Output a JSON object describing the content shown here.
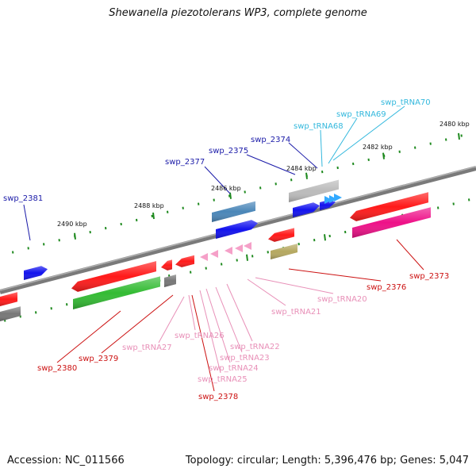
{
  "title": "Shewanella piezotolerans WP3, complete genome",
  "footer": {
    "accession": "Accession: NC_011566",
    "topology": "Topology: circular; Length: 5,396,476 bp; Genes: 5,047"
  },
  "scale_labels": [
    "2480 kbp",
    "2482 kbp",
    "2484 kbp",
    "2486 kbp",
    "2488 kbp",
    "2490 kbp"
  ],
  "feature_labels": {
    "swp_2381": "swp_2381",
    "swp_2377": "swp_2377",
    "swp_2375": "swp_2375",
    "swp_2374": "swp_2374",
    "swp_tRNA68": "swp_tRNA68",
    "swp_tRNA69": "swp_tRNA69",
    "swp_tRNA70": "swp_tRNA70",
    "swp_2373": "swp_2373",
    "swp_2376": "swp_2376",
    "swp_tRNA20": "swp_tRNA20",
    "swp_tRNA21": "swp_tRNA21",
    "swp_tRNA22": "swp_tRNA22",
    "swp_tRNA23": "swp_tRNA23",
    "swp_tRNA24": "swp_tRNA24",
    "swp_tRNA25": "swp_tRNA25",
    "swp_tRNA26": "swp_tRNA26",
    "swp_tRNA27": "swp_tRNA27",
    "swp_2378": "swp_2378",
    "swp_2379": "swp_2379",
    "swp_2380": "swp_2380"
  },
  "colors": {
    "backbone": "#7a7a7a",
    "tick": "#1f8a1f",
    "blue_label": "#1a1aa8",
    "cyan_label": "#33b8dd",
    "red_label": "#cc1111",
    "pink_label": "#e890b8",
    "gene_red": "#ff1a1a",
    "gene_blue": "#1212ee",
    "gene_green": "#33bb33",
    "gene_magenta": "#ee1188",
    "gene_gray": "#777777",
    "gene_steel": "#4a86b8",
    "gene_olive": "#b5a860",
    "gene_lightgray": "#bbbbbb",
    "trna_pink": "#f5a0c8",
    "trna_cyan": "#33aaff"
  }
}
